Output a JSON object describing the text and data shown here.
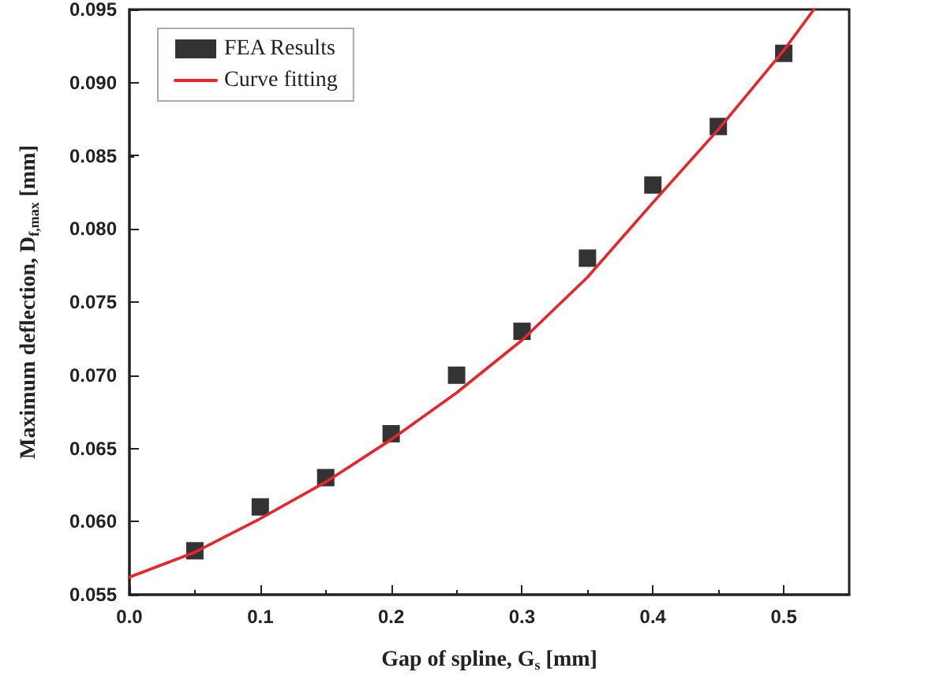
{
  "chart_data": {
    "type": "scatter",
    "xlabel": "Gap of spline, G$_{s}$ [mm]",
    "ylabel": "Maximum deflection, D$_{f,max}$ [mm]",
    "xlim": [
      0,
      0.55
    ],
    "ylim": [
      0.055,
      0.095
    ],
    "xticks": [
      {
        "value": 0,
        "label": "0.0"
      },
      {
        "value": 0.1,
        "label": "0.1"
      },
      {
        "value": 0.2,
        "label": "0.2"
      },
      {
        "value": 0.3,
        "label": "0.3"
      },
      {
        "value": 0.4,
        "label": "0.4"
      },
      {
        "value": 0.5,
        "label": "0.5"
      }
    ],
    "yticks": [
      {
        "value": 0.055,
        "label": "0.055"
      },
      {
        "value": 0.06,
        "label": "0.060"
      },
      {
        "value": 0.065,
        "label": "0.065"
      },
      {
        "value": 0.07,
        "label": "0.070"
      },
      {
        "value": 0.075,
        "label": "0.075"
      },
      {
        "value": 0.08,
        "label": "0.080"
      },
      {
        "value": 0.085,
        "label": "0.085"
      },
      {
        "value": 0.09,
        "label": "0.090"
      },
      {
        "value": 0.095,
        "label": "0.095"
      }
    ],
    "legend": "top left",
    "series": [
      {
        "name": "FEA Results",
        "marker": "square",
        "color": "#000000",
        "x": [
          0.05,
          0.1,
          0.15,
          0.2,
          0.25,
          0.3,
          0.35,
          0.4,
          0.45,
          0.5
        ],
        "values": [
          0.058,
          0.061,
          0.063,
          0.066,
          0.07,
          0.073,
          0.078,
          0.083,
          0.087,
          0.092
        ]
      },
      {
        "name": "Curve fitting",
        "type": "line",
        "marker": "none",
        "color": "#e8262a",
        "line_style": "solid",
        "x": [
          0,
          0.05,
          0.1,
          0.15,
          0.2,
          0.25,
          0.3,
          0.35,
          0.4,
          0.45,
          0.5,
          0.523
        ],
        "values": [
          0.0562,
          0.0579,
          0.0602,
          0.0627,
          0.0656,
          0.0688,
          0.0724,
          0.0767,
          0.0818,
          0.0868,
          0.0922,
          0.095
        ]
      }
    ]
  }
}
